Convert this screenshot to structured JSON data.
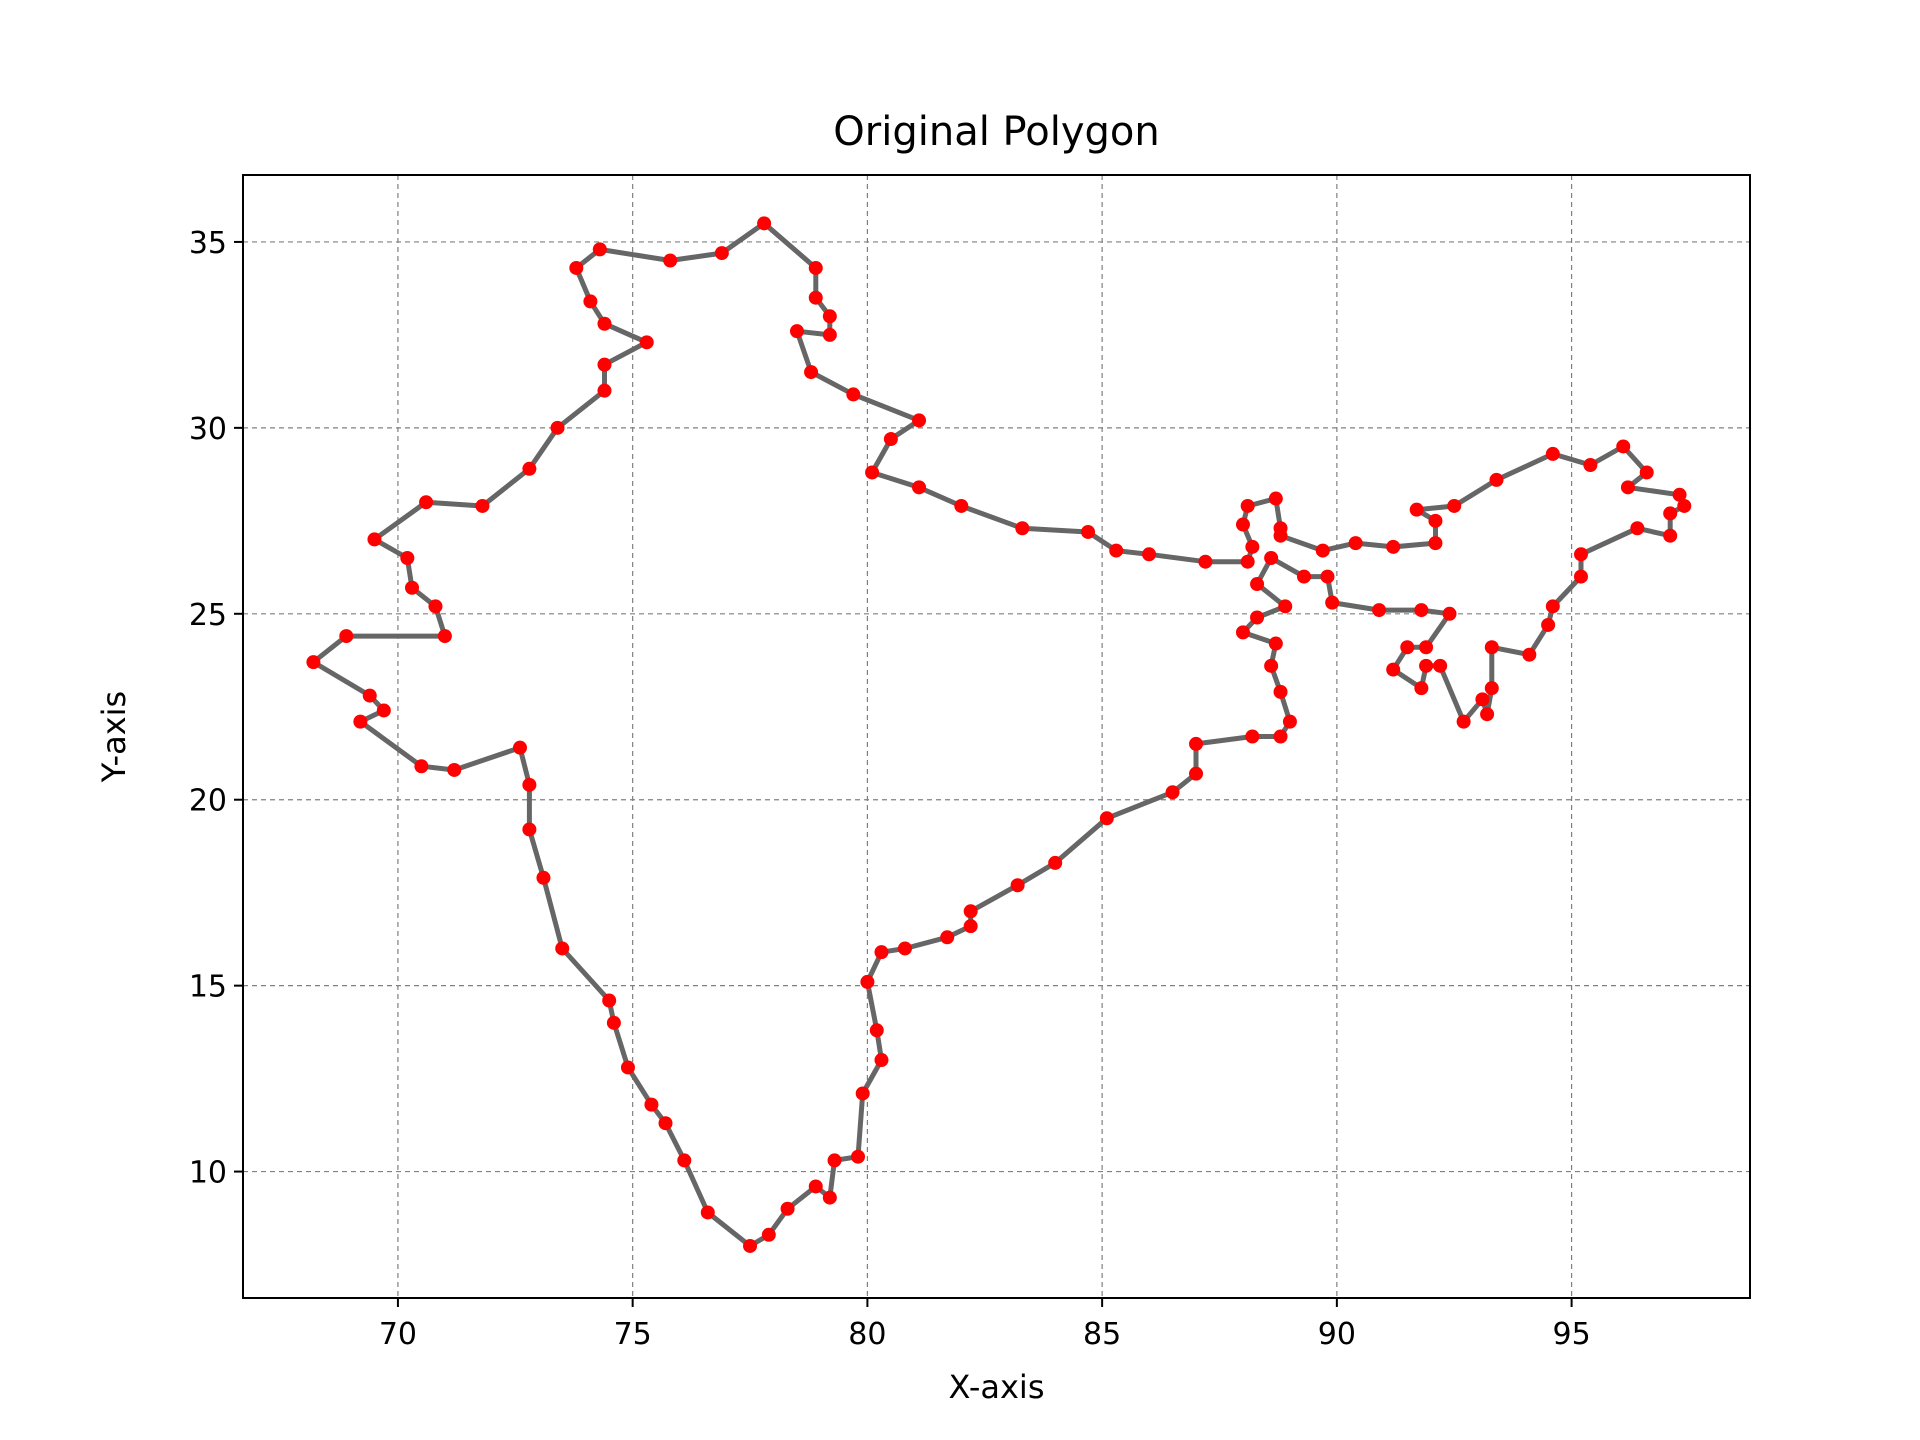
{
  "chart_data": {
    "type": "line",
    "title": "Original Polygon",
    "xlabel": "X-axis",
    "ylabel": "Y-axis",
    "xlim": [
      66.7,
      98.8
    ],
    "ylim": [
      6.6,
      36.8
    ],
    "xticks": [
      70,
      75,
      80,
      85,
      90,
      95
    ],
    "yticks": [
      10,
      15,
      20,
      25,
      30,
      35
    ],
    "grid": true,
    "colors": {
      "line": "#666666",
      "points": "#ff0000",
      "grid": "#808080",
      "frame": "#000000"
    },
    "points": [
      [
        77.8,
        35.5
      ],
      [
        78.9,
        34.3
      ],
      [
        78.9,
        33.5
      ],
      [
        79.2,
        33.0
      ],
      [
        79.2,
        32.5
      ],
      [
        78.5,
        32.6
      ],
      [
        78.8,
        31.5
      ],
      [
        79.7,
        30.9
      ],
      [
        81.1,
        30.2
      ],
      [
        80.5,
        29.7
      ],
      [
        80.1,
        28.8
      ],
      [
        81.1,
        28.4
      ],
      [
        82.0,
        27.9
      ],
      [
        83.3,
        27.3
      ],
      [
        84.7,
        27.2
      ],
      [
        85.3,
        26.7
      ],
      [
        86.0,
        26.6
      ],
      [
        87.2,
        26.4
      ],
      [
        88.1,
        26.4
      ],
      [
        88.2,
        26.8
      ],
      [
        88.0,
        27.4
      ],
      [
        88.1,
        27.9
      ],
      [
        88.7,
        28.1
      ],
      [
        88.8,
        27.3
      ],
      [
        88.8,
        27.1
      ],
      [
        89.7,
        26.7
      ],
      [
        90.4,
        26.9
      ],
      [
        91.2,
        26.8
      ],
      [
        92.1,
        26.9
      ],
      [
        92.1,
        27.5
      ],
      [
        91.7,
        27.8
      ],
      [
        92.5,
        27.9
      ],
      [
        93.4,
        28.6
      ],
      [
        94.6,
        29.3
      ],
      [
        95.4,
        29.0
      ],
      [
        96.1,
        29.5
      ],
      [
        96.6,
        28.8
      ],
      [
        96.2,
        28.4
      ],
      [
        97.3,
        28.2
      ],
      [
        97.4,
        27.9
      ],
      [
        97.1,
        27.7
      ],
      [
        97.1,
        27.1
      ],
      [
        96.4,
        27.3
      ],
      [
        95.2,
        26.6
      ],
      [
        95.2,
        26.0
      ],
      [
        94.6,
        25.2
      ],
      [
        94.5,
        24.7
      ],
      [
        94.1,
        23.9
      ],
      [
        93.3,
        24.1
      ],
      [
        93.3,
        23.0
      ],
      [
        93.2,
        22.3
      ],
      [
        93.1,
        22.7
      ],
      [
        92.7,
        22.1
      ],
      [
        92.2,
        23.6
      ],
      [
        91.9,
        23.6
      ],
      [
        91.8,
        23.0
      ],
      [
        91.2,
        23.5
      ],
      [
        91.5,
        24.1
      ],
      [
        91.9,
        24.1
      ],
      [
        92.4,
        25.0
      ],
      [
        91.8,
        25.1
      ],
      [
        90.9,
        25.1
      ],
      [
        89.9,
        25.3
      ],
      [
        89.8,
        26.0
      ],
      [
        89.3,
        26.0
      ],
      [
        88.6,
        26.5
      ],
      [
        88.3,
        25.8
      ],
      [
        88.9,
        25.2
      ],
      [
        88.3,
        24.9
      ],
      [
        88.0,
        24.5
      ],
      [
        88.7,
        24.2
      ],
      [
        88.6,
        23.6
      ],
      [
        88.8,
        22.9
      ],
      [
        89.0,
        22.1
      ],
      [
        88.8,
        21.7
      ],
      [
        88.2,
        21.7
      ],
      [
        87.0,
        21.5
      ],
      [
        87.0,
        20.7
      ],
      [
        86.5,
        20.2
      ],
      [
        85.1,
        19.5
      ],
      [
        84.0,
        18.3
      ],
      [
        83.2,
        17.7
      ],
      [
        82.2,
        17.0
      ],
      [
        82.2,
        16.6
      ],
      [
        81.7,
        16.3
      ],
      [
        80.8,
        16.0
      ],
      [
        80.3,
        15.9
      ],
      [
        80.0,
        15.1
      ],
      [
        80.2,
        13.8
      ],
      [
        80.3,
        13.0
      ],
      [
        79.9,
        12.1
      ],
      [
        79.8,
        10.4
      ],
      [
        79.3,
        10.3
      ],
      [
        79.2,
        9.3
      ],
      [
        78.9,
        9.6
      ],
      [
        78.3,
        9.0
      ],
      [
        77.9,
        8.3
      ],
      [
        77.5,
        8.0
      ],
      [
        76.6,
        8.9
      ],
      [
        76.1,
        10.3
      ],
      [
        75.7,
        11.3
      ],
      [
        75.4,
        11.8
      ],
      [
        74.9,
        12.8
      ],
      [
        74.6,
        14.0
      ],
      [
        74.5,
        14.6
      ],
      [
        73.5,
        16.0
      ],
      [
        73.1,
        17.9
      ],
      [
        72.8,
        19.2
      ],
      [
        72.8,
        20.4
      ],
      [
        72.6,
        21.4
      ],
      [
        71.2,
        20.8
      ],
      [
        70.5,
        20.9
      ],
      [
        69.2,
        22.1
      ],
      [
        69.7,
        22.4
      ],
      [
        69.4,
        22.8
      ],
      [
        68.2,
        23.7
      ],
      [
        68.9,
        24.4
      ],
      [
        71.0,
        24.4
      ],
      [
        70.8,
        25.2
      ],
      [
        70.3,
        25.7
      ],
      [
        70.2,
        26.5
      ],
      [
        69.5,
        27.0
      ],
      [
        70.6,
        28.0
      ],
      [
        71.8,
        27.9
      ],
      [
        72.8,
        28.9
      ],
      [
        73.4,
        30.0
      ],
      [
        74.4,
        31.0
      ],
      [
        74.4,
        31.7
      ],
      [
        75.3,
        32.3
      ],
      [
        74.4,
        32.8
      ],
      [
        74.1,
        33.4
      ],
      [
        73.8,
        34.3
      ],
      [
        74.3,
        34.8
      ],
      [
        75.8,
        34.5
      ],
      [
        76.9,
        34.7
      ]
    ]
  }
}
